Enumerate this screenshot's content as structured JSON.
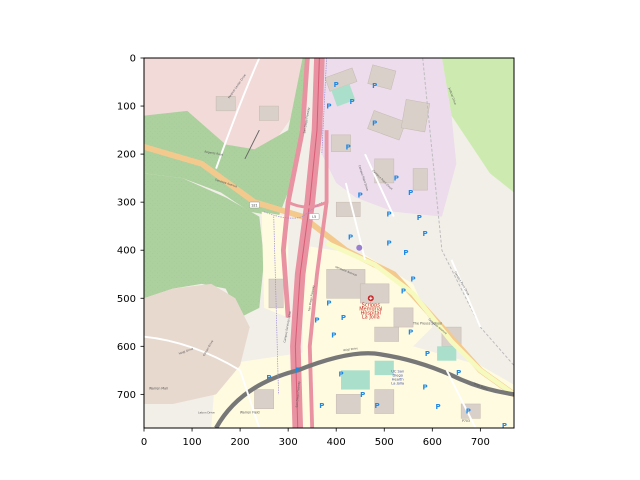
{
  "figure": {
    "x_ticks": [
      0,
      100,
      200,
      300,
      400,
      500,
      600,
      700
    ],
    "y_ticks": [
      0,
      100,
      200,
      300,
      400,
      500,
      600,
      700
    ],
    "x_range": [
      0,
      770
    ],
    "y_range": [
      770,
      0
    ],
    "grid": false
  },
  "map": {
    "road_labels": [
      {
        "text": "Genesee Avenue",
        "x": 170,
        "y": 262,
        "rot": 18,
        "size": 5
      },
      {
        "text": "Genesee Avenue",
        "x": 420,
        "y": 445,
        "rot": 22,
        "size": 5
      },
      {
        "text": "Genesee Avenue",
        "x": 610,
        "y": 560,
        "rot": 40,
        "size": 5
      },
      {
        "text": "San Diego Freeway",
        "x": 340,
        "y": 130,
        "rot": -80,
        "size": 5
      },
      {
        "text": "San Diego Freeway",
        "x": 350,
        "y": 500,
        "rot": -80,
        "size": 5
      },
      {
        "text": "San Diego Freeway",
        "x": 322,
        "y": 700,
        "rot": -85,
        "size": 5
      },
      {
        "text": "Campus Point Drive",
        "x": 455,
        "y": 250,
        "rot": 72,
        "size": 5
      },
      {
        "text": "Campus Point Drive",
        "x": 660,
        "y": 470,
        "rot": 60,
        "size": 5
      },
      {
        "text": "Campus Point Court",
        "x": 495,
        "y": 255,
        "rot": 45,
        "size": 5
      },
      {
        "text": "Voigt Drive",
        "x": 430,
        "y": 608,
        "rot": -8,
        "size": 5
      },
      {
        "text": "Voigt Drive",
        "x": 88,
        "y": 612,
        "rot": -20,
        "size": 5
      },
      {
        "text": "Voigt Drive",
        "x": 700,
        "y": 685,
        "rot": 25,
        "size": 5
      },
      {
        "text": "Regents Road",
        "x": 145,
        "y": 200,
        "rot": 10,
        "size": 5
      },
      {
        "text": "Campus Services Drive",
        "x": 300,
        "y": 560,
        "rot": -80,
        "size": 5
      },
      {
        "text": "Medical Center Drive",
        "x": 195,
        "y": 60,
        "rot": -55,
        "size": 5
      },
      {
        "text": "Judicial Drive",
        "x": 640,
        "y": 80,
        "rot": 70,
        "size": 5
      },
      {
        "text": "Gilman Drive",
        "x": 135,
        "y": 605,
        "rot": -60,
        "size": 5
      },
      {
        "text": "Lebon Drive",
        "x": 130,
        "y": 740,
        "rot": 0,
        "size": 5
      }
    ],
    "shields": [
      {
        "text": "S21",
        "x": 230,
        "y": 307
      },
      {
        "text": "I-5",
        "x": 354,
        "y": 331
      }
    ],
    "hospital": {
      "lines": [
        "Scripps",
        "Memorial",
        "Hospital",
        "La Jolla"
      ],
      "x": 472,
      "y": 500
    },
    "uc_health": {
      "lines": [
        "UC San",
        "Diego",
        "Health",
        "La Jolla"
      ],
      "x": 528,
      "y": 655
    },
    "place_labels": [
      {
        "text": "The Preuss School",
        "x": 590,
        "y": 555
      },
      {
        "text": "Warren Mall",
        "x": 30,
        "y": 690
      },
      {
        "text": "Warren Field",
        "x": 220,
        "y": 740
      },
      {
        "text": "P703",
        "x": 670,
        "y": 757
      }
    ],
    "parking": [
      {
        "x": 400,
        "y": 60
      },
      {
        "x": 480,
        "y": 62
      },
      {
        "x": 385,
        "y": 105
      },
      {
        "x": 433,
        "y": 96
      },
      {
        "x": 480,
        "y": 140
      },
      {
        "x": 425,
        "y": 190
      },
      {
        "x": 450,
        "y": 290
      },
      {
        "x": 525,
        "y": 255
      },
      {
        "x": 555,
        "y": 285
      },
      {
        "x": 573,
        "y": 337
      },
      {
        "x": 510,
        "y": 330
      },
      {
        "x": 585,
        "y": 370
      },
      {
        "x": 430,
        "y": 378
      },
      {
        "x": 510,
        "y": 390
      },
      {
        "x": 545,
        "y": 410
      },
      {
        "x": 560,
        "y": 465
      },
      {
        "x": 540,
        "y": 490
      },
      {
        "x": 385,
        "y": 515
      },
      {
        "x": 415,
        "y": 545
      },
      {
        "x": 360,
        "y": 550
      },
      {
        "x": 395,
        "y": 582
      },
      {
        "x": 555,
        "y": 575
      },
      {
        "x": 590,
        "y": 620
      },
      {
        "x": 585,
        "y": 690
      },
      {
        "x": 655,
        "y": 660
      },
      {
        "x": 612,
        "y": 730
      },
      {
        "x": 675,
        "y": 740
      },
      {
        "x": 750,
        "y": 770
      },
      {
        "x": 320,
        "y": 655
      },
      {
        "x": 260,
        "y": 670
      },
      {
        "x": 455,
        "y": 705
      },
      {
        "x": 410,
        "y": 663
      },
      {
        "x": 485,
        "y": 728
      },
      {
        "x": 370,
        "y": 728
      }
    ]
  }
}
